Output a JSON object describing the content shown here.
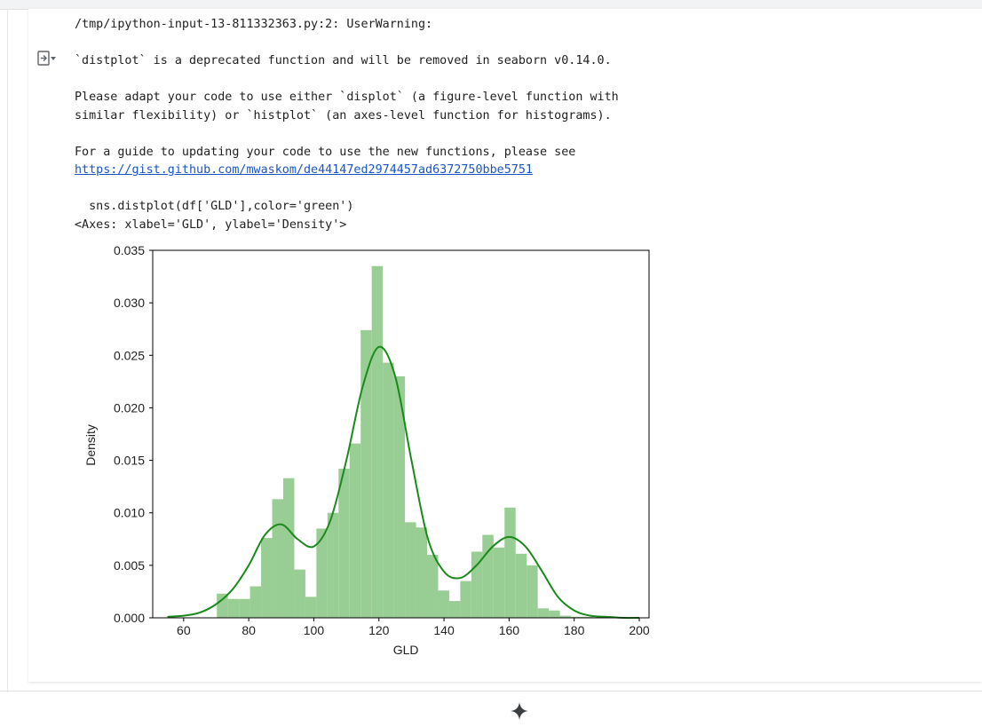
{
  "output": {
    "warning_path": "/tmp/ipython-input-13-811332363.py:2: UserWarning:",
    "deprecated_line": "`distplot` is a deprecated function and will be removed in seaborn v0.14.0.",
    "adapt_line_1": "Please adapt your code to use either `displot` (a figure-level function with",
    "adapt_line_2": "similar flexibility) or `histplot` (an axes-level function for histograms).",
    "guide_line": "For a guide to updating your code to use the new functions, please see",
    "guide_link": "https://gist.github.com/mwaskom/de44147ed2974457ad6372750bbe5751",
    "code_line": "  sns.distplot(df['GLD'],color='green')",
    "axes_repr": "<Axes: xlabel='GLD', ylabel='Density'>"
  },
  "icons": {
    "output_toggle": "output-toggle-icon",
    "gemini": "sparkle-icon"
  },
  "colors": {
    "hist_fill": "#98cd93",
    "kde_line": "#1a8a1a",
    "link": "#1a55c6"
  },
  "chart_data": {
    "type": "bar",
    "xlabel": "GLD",
    "ylabel": "Density",
    "xlim": [
      50.5,
      203
    ],
    "ylim": [
      0,
      0.035
    ],
    "xticks": [
      60,
      80,
      100,
      120,
      140,
      160,
      180,
      200
    ],
    "yticks": [
      "0.000",
      "0.005",
      "0.010",
      "0.015",
      "0.020",
      "0.025",
      "0.030",
      "0.035"
    ],
    "hist_bins": {
      "edges": [
        70.2,
        73.6,
        77.0,
        80.4,
        83.8,
        87.2,
        90.6,
        94.0,
        97.4,
        100.8,
        104.2,
        107.6,
        111.0,
        114.4,
        117.8,
        121.2,
        124.6,
        128.0,
        131.4,
        134.8,
        138.2,
        141.6,
        145.0,
        148.4,
        151.8,
        155.2,
        158.6,
        162.0,
        165.4,
        168.8,
        172.2,
        175.6,
        179.0,
        182.4,
        185.8
      ],
      "density": [
        0.0023,
        0.0018,
        0.0018,
        0.003,
        0.0076,
        0.0113,
        0.0133,
        0.0046,
        0.002,
        0.0085,
        0.01,
        0.0142,
        0.0166,
        0.0274,
        0.0335,
        0.0243,
        0.023,
        0.0091,
        0.0086,
        0.006,
        0.0026,
        0.0016,
        0.0035,
        0.0063,
        0.0079,
        0.0067,
        0.0105,
        0.0061,
        0.005,
        0.0009,
        0.0007,
        0.0002,
        0.0001,
        0.0001
      ]
    },
    "kde": {
      "x": [
        55,
        60,
        65,
        70,
        75,
        80,
        85,
        90,
        95,
        100,
        105,
        110,
        115,
        120,
        125,
        130,
        135,
        140,
        145,
        150,
        155,
        160,
        165,
        170,
        175,
        180,
        185,
        190,
        195,
        200
      ],
      "y": [
        0.0001,
        0.0002,
        0.0005,
        0.0013,
        0.0027,
        0.005,
        0.0079,
        0.0089,
        0.0075,
        0.0068,
        0.0092,
        0.015,
        0.022,
        0.0258,
        0.023,
        0.015,
        0.0076,
        0.0044,
        0.0038,
        0.005,
        0.0068,
        0.0077,
        0.0068,
        0.0045,
        0.002,
        0.0007,
        0.0002,
        0.0001,
        0.0,
        0.0
      ]
    }
  }
}
